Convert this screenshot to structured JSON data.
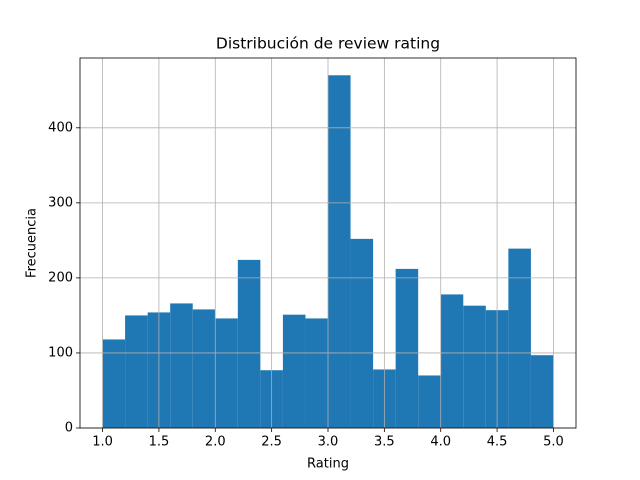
{
  "chart_data": {
    "type": "histogram",
    "title": "Distribución de review rating",
    "xlabel": "Rating",
    "ylabel": "Frecuencia",
    "bins": [
      1.0,
      1.2,
      1.4,
      1.6,
      1.8,
      2.0,
      2.2,
      2.4,
      2.6,
      2.8,
      3.0,
      3.2,
      3.4,
      3.6,
      3.8,
      4.0,
      4.2,
      4.4,
      4.6,
      4.8,
      5.0
    ],
    "values": [
      118,
      150,
      154,
      166,
      158,
      146,
      224,
      77,
      151,
      146,
      470,
      252,
      78,
      212,
      70,
      178,
      163,
      157,
      239,
      97
    ],
    "color": "#1f77b4",
    "xlim": [
      0.8,
      5.2
    ],
    "xticks": [
      {
        "value": 1,
        "label": "1.0"
      },
      1.5,
      {
        "value": 2,
        "label": "2.0"
      },
      2.5,
      {
        "value": 3,
        "label": "3.0"
      },
      3.5,
      {
        "value": 4,
        "label": "4.0"
      },
      4.5,
      {
        "value": 5,
        "label": "5.0"
      }
    ],
    "ylim": [
      0,
      493
    ],
    "yticks": [
      0,
      100,
      200,
      300,
      400
    ],
    "grid": true
  }
}
